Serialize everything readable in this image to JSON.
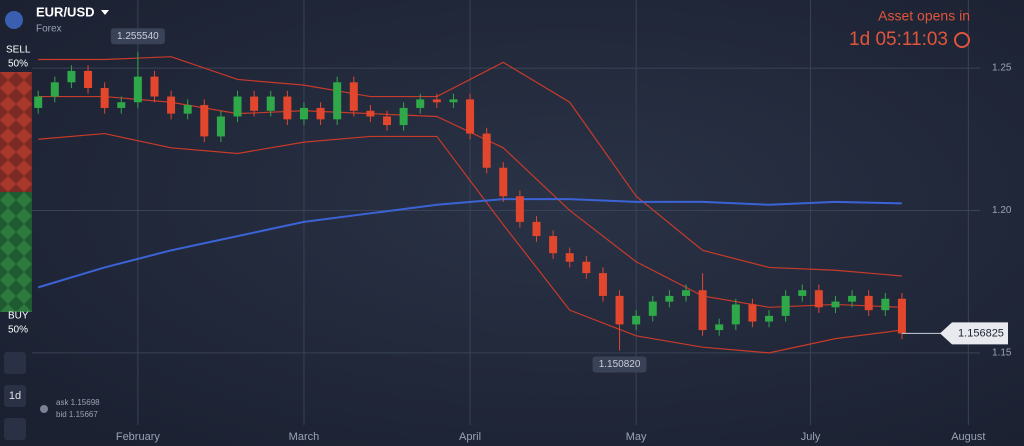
{
  "header": {
    "asset": "EUR/USD",
    "market": "Forex",
    "opens_title": "Asset opens in",
    "countdown": "1d 05:11:03"
  },
  "sentiment": {
    "sell_label": "SELL",
    "sell": 50,
    "sell_text": "50%",
    "buy_label": "BUY",
    "buy": 50,
    "buy_text": "50%"
  },
  "toolbar": {
    "period": "1d",
    "ask": "ask 1.15698",
    "bid": "bid 1.15667"
  },
  "chart_data": {
    "type": "candlestick",
    "x": [
      8,
      10,
      12,
      14,
      16,
      18,
      20,
      22,
      24,
      26,
      28,
      30,
      32,
      34,
      36,
      38,
      40,
      42,
      44,
      46,
      48,
      50,
      52,
      54,
      56,
      58,
      60,
      62,
      64,
      66,
      68,
      70,
      72,
      74,
      76,
      78,
      80,
      82,
      84,
      86,
      88,
      90,
      92,
      94,
      96,
      98,
      100,
      102,
      104,
      106,
      108,
      110,
      112
    ],
    "open": [
      1.236,
      1.24,
      1.245,
      1.249,
      1.243,
      1.236,
      1.238,
      1.247,
      1.24,
      1.234,
      1.237,
      1.226,
      1.233,
      1.24,
      1.235,
      1.24,
      1.232,
      1.236,
      1.232,
      1.245,
      1.235,
      1.233,
      1.23,
      1.236,
      1.239,
      1.238,
      1.239,
      1.227,
      1.215,
      1.205,
      1.196,
      1.191,
      1.185,
      1.182,
      1.178,
      1.17,
      1.16,
      1.163,
      1.168,
      1.17,
      1.172,
      1.158,
      1.16,
      1.167,
      1.161,
      1.163,
      1.17,
      1.172,
      1.166,
      1.168,
      1.17,
      1.165,
      1.169
    ],
    "high": [
      1.242,
      1.247,
      1.251,
      1.251,
      1.245,
      1.24,
      1.25554,
      1.249,
      1.242,
      1.239,
      1.239,
      1.235,
      1.242,
      1.242,
      1.242,
      1.242,
      1.238,
      1.238,
      1.247,
      1.247,
      1.237,
      1.235,
      1.238,
      1.241,
      1.241,
      1.241,
      1.241,
      1.229,
      1.217,
      1.207,
      1.198,
      1.193,
      1.187,
      1.184,
      1.18,
      1.172,
      1.165,
      1.17,
      1.172,
      1.174,
      1.178,
      1.162,
      1.169,
      1.169,
      1.165,
      1.172,
      1.174,
      1.174,
      1.17,
      1.172,
      1.172,
      1.171,
      1.171
    ],
    "low": [
      1.234,
      1.238,
      1.243,
      1.241,
      1.234,
      1.234,
      1.236,
      1.238,
      1.232,
      1.232,
      1.224,
      1.224,
      1.231,
      1.233,
      1.233,
      1.23,
      1.23,
      1.23,
      1.23,
      1.233,
      1.231,
      1.228,
      1.228,
      1.234,
      1.236,
      1.236,
      1.225,
      1.213,
      1.203,
      1.194,
      1.189,
      1.183,
      1.18,
      1.176,
      1.168,
      1.15082,
      1.158,
      1.161,
      1.166,
      1.168,
      1.156,
      1.156,
      1.158,
      1.159,
      1.159,
      1.161,
      1.168,
      1.164,
      1.164,
      1.166,
      1.163,
      1.163,
      1.1548
    ],
    "close": [
      1.24,
      1.245,
      1.249,
      1.243,
      1.236,
      1.238,
      1.247,
      1.24,
      1.234,
      1.237,
      1.226,
      1.233,
      1.24,
      1.235,
      1.24,
      1.232,
      1.236,
      1.232,
      1.245,
      1.235,
      1.233,
      1.23,
      1.236,
      1.239,
      1.238,
      1.239,
      1.227,
      1.215,
      1.205,
      1.196,
      1.191,
      1.185,
      1.182,
      1.178,
      1.17,
      1.16,
      1.163,
      1.168,
      1.17,
      1.172,
      1.158,
      1.16,
      1.167,
      1.161,
      1.163,
      1.17,
      1.172,
      1.166,
      1.168,
      1.17,
      1.165,
      1.169,
      1.156825
    ],
    "up_color": "#2fa84a",
    "down_color": "#e2472e",
    "overlays": [
      {
        "color": "#c83a2a",
        "x": [
          8,
          16,
          24,
          32,
          40,
          48,
          56,
          64,
          72,
          80,
          88,
          96,
          104,
          112
        ],
        "values": [
          1.253,
          1.253,
          1.254,
          1.246,
          1.244,
          1.24,
          1.24,
          1.252,
          1.238,
          1.205,
          1.186,
          1.18,
          1.179,
          1.177
        ]
      },
      {
        "color": "#c83a2a",
        "x": [
          8,
          16,
          24,
          32,
          40,
          48,
          56,
          64,
          72,
          80,
          88,
          96,
          104,
          112
        ],
        "values": [
          1.24,
          1.24,
          1.238,
          1.234,
          1.235,
          1.234,
          1.233,
          1.222,
          1.2,
          1.182,
          1.17,
          1.166,
          1.167,
          1.166
        ]
      },
      {
        "color": "#c83a2a",
        "x": [
          8,
          16,
          24,
          32,
          40,
          48,
          56,
          64,
          72,
          80,
          88,
          96,
          104,
          112
        ],
        "values": [
          1.225,
          1.227,
          1.222,
          1.22,
          1.224,
          1.226,
          1.226,
          1.195,
          1.165,
          1.156,
          1.152,
          1.15,
          1.155,
          1.158
        ]
      },
      {
        "color": "#3b63d6",
        "x": [
          8,
          16,
          24,
          32,
          40,
          48,
          56,
          64,
          72,
          80,
          88,
          96,
          104,
          112
        ],
        "values": [
          1.173,
          1.18,
          1.186,
          1.191,
          1.196,
          1.199,
          1.202,
          1.204,
          1.204,
          1.203,
          1.203,
          1.202,
          1.203,
          1.2025
        ]
      }
    ],
    "xlim": [
      3.4,
      126.7
    ],
    "xticks": [
      {
        "value": 20,
        "label": "February"
      },
      {
        "value": 40,
        "label": "March"
      },
      {
        "value": 60,
        "label": "April"
      },
      {
        "value": 80,
        "label": "May"
      },
      {
        "value": 101,
        "label": "July"
      },
      {
        "value": 120,
        "label": "August"
      }
    ],
    "ylim": [
      1.1173,
      1.2739
    ],
    "yticks": [
      1.15,
      {
        "value": 1.2,
        "label": "1.20"
      },
      1.25
    ],
    "grid": true,
    "max_label": {
      "value": 1.25554,
      "label": "1.255540"
    },
    "min_label": {
      "value": 1.15082,
      "label": "1.150820"
    },
    "current": 1.156825
  }
}
